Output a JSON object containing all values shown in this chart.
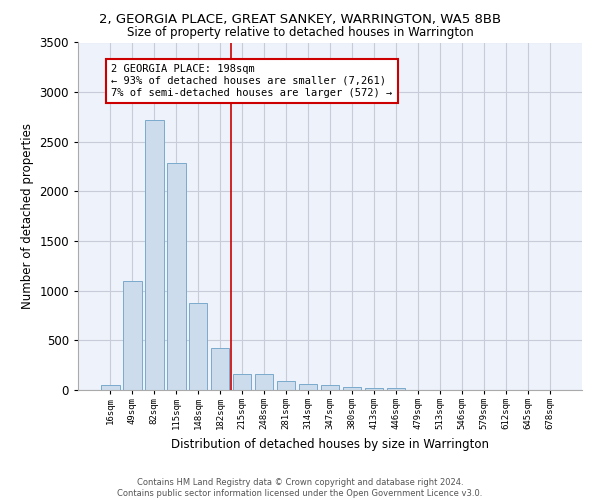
{
  "title": "2, GEORGIA PLACE, GREAT SANKEY, WARRINGTON, WA5 8BB",
  "subtitle": "Size of property relative to detached houses in Warrington",
  "xlabel": "Distribution of detached houses by size in Warrington",
  "ylabel": "Number of detached properties",
  "bar_color": "#ccdcec",
  "bar_edge_color": "#7aaacc",
  "background_color": "#eef2fa",
  "grid_color": "#c8ccd8",
  "categories": [
    "16sqm",
    "49sqm",
    "82sqm",
    "115sqm",
    "148sqm",
    "182sqm",
    "215sqm",
    "248sqm",
    "281sqm",
    "314sqm",
    "347sqm",
    "380sqm",
    "413sqm",
    "446sqm",
    "479sqm",
    "513sqm",
    "546sqm",
    "579sqm",
    "612sqm",
    "645sqm",
    "678sqm"
  ],
  "values": [
    55,
    1100,
    2720,
    2290,
    880,
    420,
    165,
    160,
    90,
    60,
    55,
    30,
    25,
    25,
    0,
    0,
    0,
    0,
    0,
    0,
    0
  ],
  "vline_color": "#cc0000",
  "vline_pos": 5.5,
  "annotation_text": "2 GEORGIA PLACE: 198sqm\n← 93% of detached houses are smaller (7,261)\n7% of semi-detached houses are larger (572) →",
  "annotation_box_color": "#ffffff",
  "annotation_box_edge": "#cc0000",
  "ylim": [
    0,
    3500
  ],
  "yticks": [
    0,
    500,
    1000,
    1500,
    2000,
    2500,
    3000,
    3500
  ],
  "footer1": "Contains HM Land Registry data © Crown copyright and database right 2024.",
  "footer2": "Contains public sector information licensed under the Open Government Licence v3.0."
}
